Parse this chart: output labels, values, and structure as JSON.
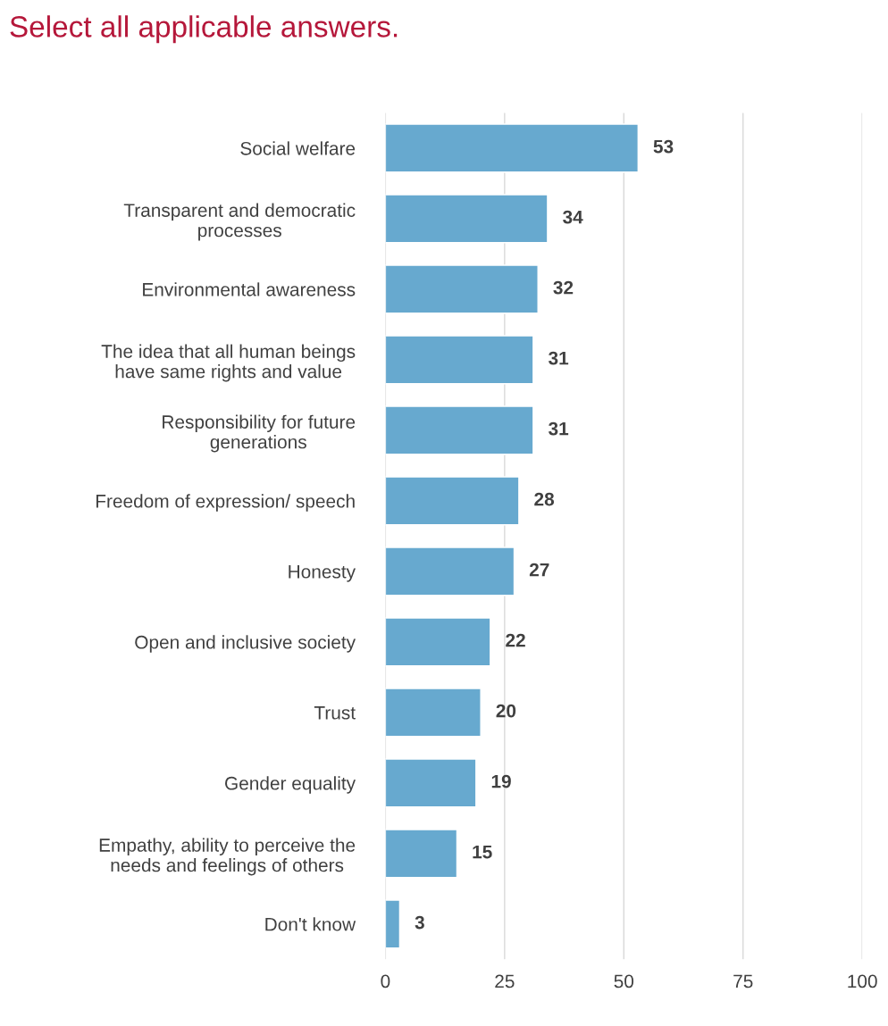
{
  "chart_data": {
    "type": "bar",
    "orientation": "horizontal",
    "title": "Select all applicable answers.",
    "categories": [
      "Social welfare",
      "Transparent and democratic\nprocesses",
      "Environmental awareness",
      "The idea that all human beings\nhave same rights and value",
      "Responsibility for future\ngenerations",
      "Freedom of expression/ speech",
      "Honesty",
      "Open and inclusive society",
      "Trust",
      "Gender equality",
      "Empathy, ability to perceive the\nneeds and feelings of others",
      "Don't know"
    ],
    "values": [
      53,
      34,
      32,
      31,
      31,
      28,
      27,
      22,
      20,
      19,
      15,
      3
    ],
    "color": "#67a9cf",
    "data_labels": true,
    "xlim": [
      0,
      100
    ],
    "xticks": [
      0,
      25,
      50,
      75,
      100
    ],
    "grid": "x",
    "legend": false
  }
}
